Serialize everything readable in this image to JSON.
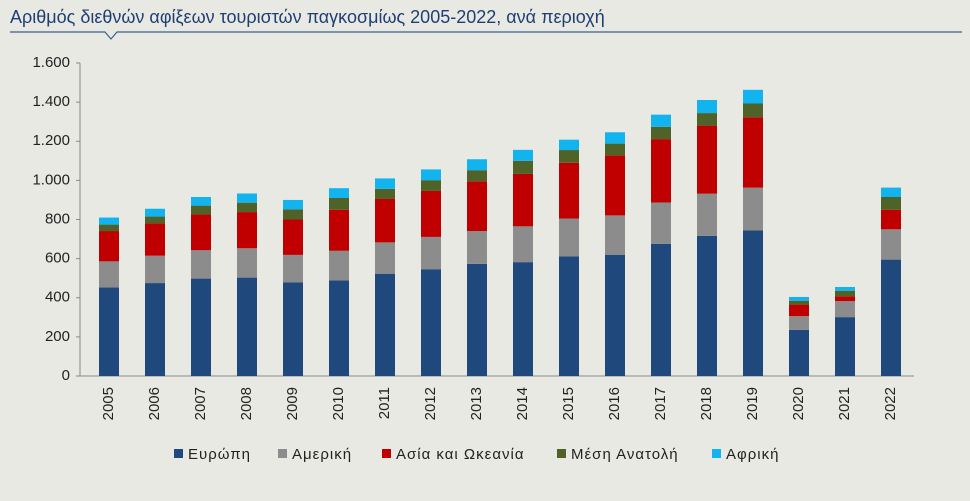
{
  "chart_data": {
    "type": "stacked_bar",
    "title": "Αριθμός διεθνών αφίξεων τουριστών παγκοσμίως 2005-2022, ανά περιοχή",
    "categories": [
      "2005",
      "2006",
      "2007",
      "2008",
      "2009",
      "2010",
      "2011",
      "2012",
      "2013",
      "2014",
      "2015",
      "2016",
      "2017",
      "2018",
      "2019",
      "2020",
      "2021",
      "2022"
    ],
    "series": [
      {
        "name": "Ευρώπη",
        "color": "#1f497d",
        "values": [
          453,
          475,
          498,
          503,
          478,
          489,
          523,
          546,
          573,
          582,
          611,
          620,
          676,
          716,
          744,
          236,
          301,
          595
        ]
      },
      {
        "name": "Αμερική",
        "color": "#8c8c8c",
        "values": [
          133,
          140,
          145,
          150,
          141,
          151,
          160,
          165,
          168,
          183,
          194,
          201,
          211,
          216,
          219,
          70,
          82,
          155
        ]
      },
      {
        "name": "Ασία και Ωκεανία",
        "color": "#c00000",
        "values": [
          155,
          165,
          183,
          185,
          181,
          210,
          222,
          235,
          254,
          268,
          285,
          307,
          324,
          348,
          360,
          59,
          25,
          100
        ]
      },
      {
        "name": "Μέση Ανατολή",
        "color": "#4f6228",
        "values": [
          33,
          35,
          45,
          48,
          52,
          60,
          52,
          55,
          57,
          67,
          65,
          60,
          63,
          64,
          70,
          20,
          28,
          65
        ]
      },
      {
        "name": "Αφρική",
        "color": "#12b4ef",
        "values": [
          36,
          40,
          44,
          47,
          48,
          50,
          53,
          55,
          56,
          56,
          53,
          58,
          62,
          67,
          70,
          19,
          19,
          48
        ]
      }
    ],
    "ylim": [
      0,
      1600
    ],
    "yticks": [
      0,
      200,
      400,
      600,
      800,
      {
        "value": 1000,
        "label": "1.000"
      },
      {
        "value": 1200,
        "label": "1.200"
      },
      {
        "value": 1400,
        "label": "1.400"
      },
      {
        "value": 1600,
        "label": "1.600"
      }
    ],
    "legend": "bottom"
  }
}
